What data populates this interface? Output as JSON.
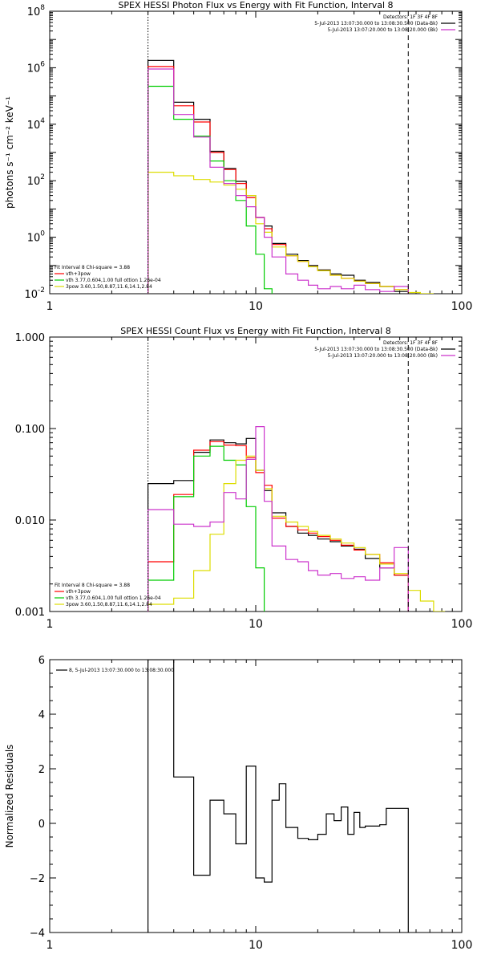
{
  "chart_data": [
    {
      "type": "line",
      "title": "SPEX HESSI Photon Flux vs Energy with Fit Function, Interval 8",
      "xlabel": "",
      "ylabel": "photons s⁻¹ cm⁻² keV⁻¹",
      "xscale": "log",
      "yscale": "log",
      "xlim": [
        1,
        100
      ],
      "ylim": [
        0.01,
        100000000
      ],
      "xticks": [
        {
          "v": 1,
          "label": "1"
        },
        {
          "v": 10,
          "label": "10"
        },
        {
          "v": 100,
          "label": "100"
        }
      ],
      "yticks": [
        {
          "v": 0.01,
          "base": "10",
          "exp": "-2"
        },
        {
          "v": 1,
          "base": "10",
          "exp": "0"
        },
        {
          "v": 100,
          "base": "10",
          "exp": "2"
        },
        {
          "v": 10000,
          "base": "10",
          "exp": "4"
        },
        {
          "v": 1000000,
          "base": "10",
          "exp": "6"
        },
        {
          "v": 100000000,
          "base": "10",
          "exp": "8"
        }
      ],
      "vlines": [
        {
          "x": 3.0,
          "style": "dotted"
        },
        {
          "x": 55,
          "style": "dashed"
        }
      ],
      "legend_tr": [
        {
          "text": "Detectors: 1F 3F 4F 8F",
          "color": "#000000"
        },
        {
          "text": "5-Jul-2013 13:07:30.000 to 13:08:30.500 (Data-Bk)",
          "color": "#000000",
          "swatch": true
        },
        {
          "text": "5-Jul-2013 13:07:20.000 to 13:08:20.000 (Bk)",
          "color": "#cc33cc",
          "swatch": true
        }
      ],
      "legend_bl": [
        {
          "text": "Fit Interval 8   Chi-square = 3.88",
          "color": "#000000"
        },
        {
          "text": "vth+3pow",
          "color": "#ff0000",
          "swatch": true
        },
        {
          "text": "vth 3.77,0.604,1.00  full ottion 1.26e-04",
          "color": "#00cc00",
          "swatch": true
        },
        {
          "text": "3pow 3.60,1.50,8.87,11.6,14.1,2.84",
          "color": "#dddd00",
          "swatch": true
        }
      ],
      "edges": [
        3.0,
        4.0,
        5.0,
        6.0,
        7.0,
        8.0,
        9.0,
        10.0,
        11.0,
        12.0,
        14.0,
        16.0,
        18.0,
        20.0,
        23.0,
        26.0,
        30.0,
        34.0,
        40.0,
        47.0,
        55.0,
        63.0,
        73.0,
        83.0
      ],
      "series": [
        {
          "name": "5-Jul-2013 13:07:30.000 to 13:08:30.500 (Data-Bk)",
          "color": "#000000",
          "values": [
            1800000,
            60000,
            15000,
            1100,
            270,
            95,
            30,
            5.0,
            2.5,
            0.6,
            0.25,
            0.15,
            0.1,
            0.07,
            0.05,
            0.045,
            0.03,
            0.025,
            0.018,
            0.012
          ]
        },
        {
          "name": "vth+3pow",
          "color": "#ff0000",
          "values": [
            1100000,
            45000,
            12000,
            1000,
            250,
            80,
            25,
            5.0,
            2.0,
            0.55,
            0.22,
            0.14,
            0.09,
            0.065,
            0.045,
            0.035,
            0.028,
            0.023,
            0.018,
            0.014
          ]
        },
        {
          "name": "vth 3.77,0.604,1.00  full ottion 1.26e-04",
          "color": "#00cc00",
          "values": [
            220000,
            15000,
            3800,
            500,
            100,
            20,
            2.5,
            0.25,
            0.015
          ]
        },
        {
          "name": "3pow 3.60,1.50,8.87,11.6,14.1,2.84",
          "color": "#dddd00",
          "values": [
            200,
            150,
            110,
            90,
            70,
            50,
            30,
            3.0,
            1.5,
            0.45,
            0.22,
            0.14,
            0.09,
            0.065,
            0.045,
            0.035,
            0.028,
            0.023,
            0.018,
            0.014,
            0.011,
            0.009
          ]
        },
        {
          "name": "5-Jul-2013 13:07:20.000 to 13:08:20.000 (Bk)",
          "color": "#cc33cc",
          "values": [
            900000,
            22000,
            3500,
            300,
            80,
            30,
            12,
            5.0,
            1.0,
            0.2,
            0.05,
            0.03,
            0.02,
            0.015,
            0.018,
            0.015,
            0.02,
            0.014,
            0.012,
            0.018
          ]
        }
      ]
    },
    {
      "type": "line",
      "title": "SPEX HESSI Count Flux vs Energy with Fit Function, Interval 8",
      "xlabel": "",
      "ylabel": "",
      "xscale": "log",
      "yscale": "log",
      "xlim": [
        1,
        100
      ],
      "ylim": [
        0.001,
        1.0
      ],
      "xticks": [
        {
          "v": 1,
          "label": "1"
        },
        {
          "v": 10,
          "label": "10"
        },
        {
          "v": 100,
          "label": "100"
        }
      ],
      "yticks": [
        {
          "v": 0.001,
          "label": "0.001"
        },
        {
          "v": 0.01,
          "label": "0.010"
        },
        {
          "v": 0.1,
          "label": "0.100"
        },
        {
          "v": 1.0,
          "label": "1.000"
        }
      ],
      "vlines": [
        {
          "x": 3.0,
          "style": "dotted"
        },
        {
          "x": 55,
          "style": "dashed"
        }
      ],
      "legend_tr": [
        {
          "text": "Detectors: 1F 3F 4F 8F",
          "color": "#000000"
        },
        {
          "text": "5-Jul-2013 13:07:30.000 to 13:08:30.500 (Data-Bk)",
          "color": "#000000",
          "swatch": true
        },
        {
          "text": "5-Jul-2013 13:07:20.000 to 13:08:20.000 (Bk)",
          "color": "#cc33cc",
          "swatch": true
        }
      ],
      "legend_bl": [
        {
          "text": "Fit Interval 8   Chi-square = 3.88",
          "color": "#000000"
        },
        {
          "text": "vth+3pow",
          "color": "#ff0000",
          "swatch": true
        },
        {
          "text": "vth 3.77,0.604,1.00  full ottion 1.26e-04",
          "color": "#00cc00",
          "swatch": true
        },
        {
          "text": "3pow 3.60,1.50,8.87,11.6,14.1,2.84",
          "color": "#dddd00",
          "swatch": true
        }
      ],
      "edges": [
        3.0,
        4.0,
        5.0,
        6.0,
        7.0,
        8.0,
        9.0,
        10.0,
        11.0,
        12.0,
        14.0,
        16.0,
        18.0,
        20.0,
        23.0,
        26.0,
        30.0,
        34.0,
        40.0,
        47.0,
        55.0,
        63.0,
        73.0,
        83.0
      ],
      "series": [
        {
          "name": "5-Jul-2013 13:07:30.000 to 13:08:30.500 (Data-Bk)",
          "color": "#000000",
          "values": [
            0.025,
            0.027,
            0.055,
            0.075,
            0.07,
            0.068,
            0.078,
            0.035,
            0.021,
            0.012,
            0.0085,
            0.0072,
            0.0068,
            0.0062,
            0.0058,
            0.0052,
            0.0048,
            0.0038,
            0.003,
            0.0025
          ]
        },
        {
          "name": "vth+3pow",
          "color": "#ff0000",
          "values": [
            0.0035,
            0.019,
            0.058,
            0.072,
            0.066,
            0.065,
            0.048,
            0.033,
            0.024,
            0.0105,
            0.0085,
            0.0078,
            0.0072,
            0.0066,
            0.006,
            0.0053,
            0.0047,
            0.0042,
            0.0034,
            0.0025
          ]
        },
        {
          "name": "vth 3.77,0.604,1.00  full ottion 1.26e-04",
          "color": "#00cc00",
          "values": [
            0.0022,
            0.018,
            0.05,
            0.064,
            0.045,
            0.04,
            0.014,
            0.003
          ]
        },
        {
          "name": "3pow 3.60,1.50,8.87,11.6,14.1,2.84",
          "color": "#dddd00",
          "values": [
            0.0012,
            0.0014,
            0.0028,
            0.007,
            0.025,
            0.045,
            0.05,
            0.035,
            0.022,
            0.011,
            0.0095,
            0.0085,
            0.0075,
            0.0068,
            0.0062,
            0.0056,
            0.005,
            0.0042,
            0.0033,
            0.0026,
            0.0017,
            0.0013,
            0.001
          ]
        },
        {
          "name": "5-Jul-2013 13:07:20.000 to 13:08:20.000 (Bk)",
          "color": "#cc33cc",
          "values": [
            0.013,
            0.009,
            0.0085,
            0.0095,
            0.02,
            0.017,
            0.046,
            0.105,
            0.016,
            0.0052,
            0.0037,
            0.0035,
            0.0028,
            0.0025,
            0.0026,
            0.0023,
            0.0024,
            0.0022,
            0.003,
            0.005
          ]
        }
      ]
    },
    {
      "type": "line",
      "title": "",
      "xlabel": "",
      "ylabel": "Normalized Residuals",
      "xscale": "log",
      "yscale": "linear",
      "xlim": [
        1,
        100
      ],
      "ylim": [
        -4,
        6
      ],
      "xticks": [
        {
          "v": 1,
          "label": "1"
        },
        {
          "v": 10,
          "label": "10"
        },
        {
          "v": 100,
          "label": "100"
        }
      ],
      "yticks": [
        {
          "v": -4,
          "label": "−4"
        },
        {
          "v": -2,
          "label": "−2"
        },
        {
          "v": 0,
          "label": "0"
        },
        {
          "v": 2,
          "label": "2"
        },
        {
          "v": 4,
          "label": "4"
        },
        {
          "v": 6,
          "label": "6"
        }
      ],
      "vlines": [],
      "legend_tr": [],
      "legend_bl": [],
      "legend_tl": [
        {
          "text": "8,  5-Jul-2013 13:07:30.000 to 13:08:30.000",
          "color": "#000000",
          "swatch": true
        }
      ],
      "edges": [
        3.0,
        4.0,
        5.0,
        6.0,
        7.0,
        8.0,
        9.0,
        10.0,
        11.0,
        12.0,
        13.0,
        14.0,
        16.0,
        18.0,
        20.0,
        22.0,
        24.0,
        26.0,
        28.0,
        30.0,
        32.0,
        34.0,
        37.0,
        40.0,
        43.0,
        47.0,
        51.0,
        55.0
      ],
      "series": [
        {
          "name": "8,  5-Jul-2013 13:07:30.000 to 13:08:30.000",
          "color": "#000000",
          "drop_to": -4,
          "values": [
            6.5,
            1.7,
            -1.9,
            0.85,
            0.35,
            -0.75,
            2.1,
            -2.0,
            -2.15,
            0.85,
            1.45,
            -0.15,
            -0.55,
            -0.6,
            -0.4,
            0.35,
            0.1,
            0.6,
            -0.4,
            0.4,
            -0.15,
            -0.1,
            -0.1,
            -0.05,
            0.55,
            0.55,
            0.55
          ]
        }
      ]
    }
  ]
}
